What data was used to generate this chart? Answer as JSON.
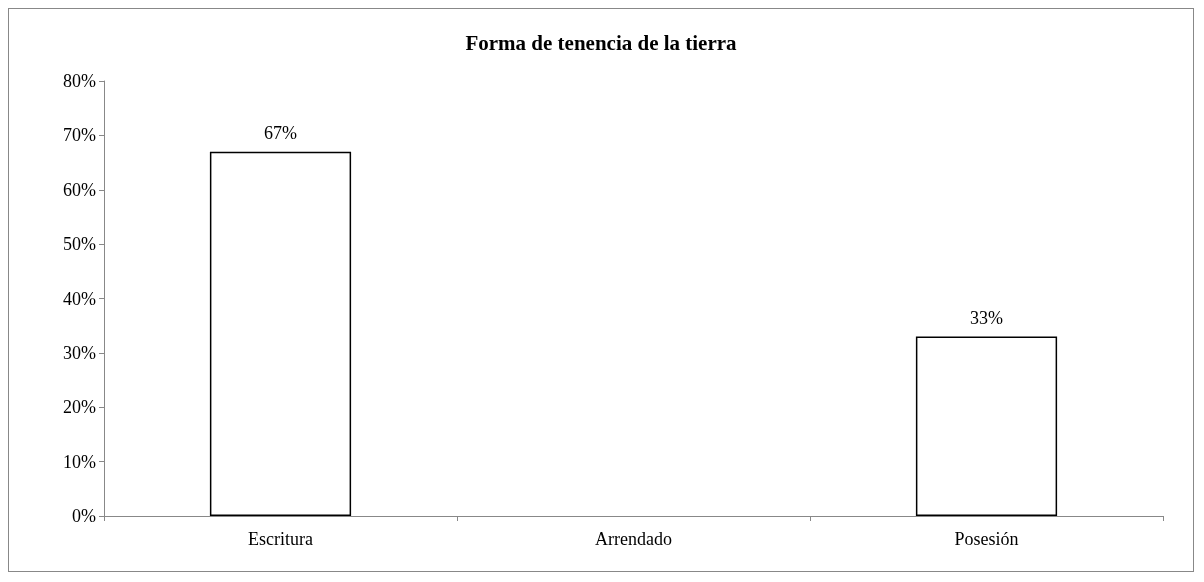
{
  "chart_data": {
    "type": "bar",
    "title": "Forma de tenencia de la tierra",
    "categories": [
      "Escritura",
      "Arrendado",
      "Posesión"
    ],
    "values": [
      67,
      0,
      33
    ],
    "value_labels": [
      "67%",
      null,
      "33%"
    ],
    "color": "#ffffff",
    "ylim": [
      0,
      80
    ],
    "yticks": [
      {
        "value": 0,
        "label": "0%"
      },
      {
        "value": 10,
        "label": "10%"
      },
      {
        "value": 20,
        "label": "20%"
      },
      {
        "value": 30,
        "label": "30%"
      },
      {
        "value": 40,
        "label": "40%"
      },
      {
        "value": 50,
        "label": "50%"
      },
      {
        "value": 60,
        "label": "60%"
      },
      {
        "value": 70,
        "label": "70%"
      },
      {
        "value": 80,
        "label": "80%"
      }
    ],
    "grid": false
  }
}
